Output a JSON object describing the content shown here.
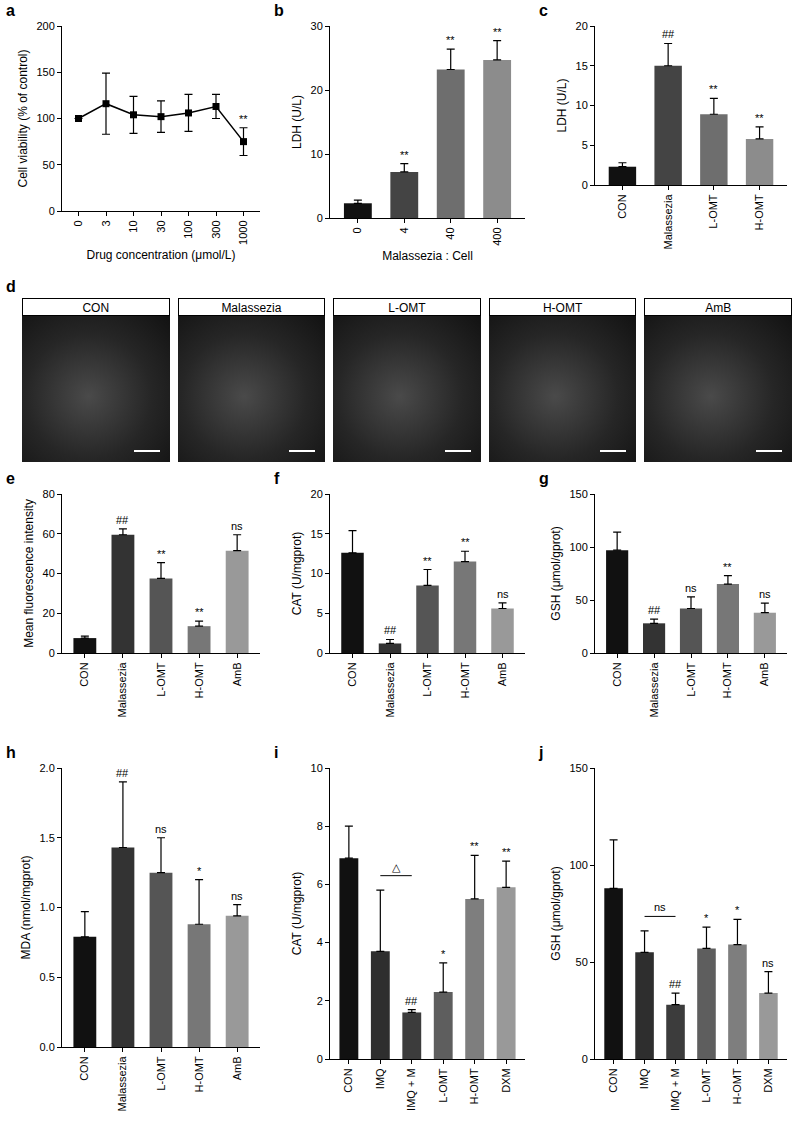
{
  "chart_data": [
    {
      "type": "line",
      "title": "a",
      "categories": [
        "0",
        "3",
        "10",
        "30",
        "100",
        "300",
        "1000"
      ],
      "values": [
        100,
        116,
        104,
        102,
        106,
        113,
        75
      ],
      "errors": [
        0,
        33,
        20,
        17,
        20,
        13,
        15
      ],
      "significance": [
        null,
        null,
        null,
        null,
        null,
        null,
        "**"
      ],
      "color": "#000000",
      "marker": "square",
      "x_label": "Drug concentration (μmol/L)",
      "y_label": "Cell viability (% of control)",
      "ylim": [
        0,
        200
      ],
      "yticks": [
        0,
        50,
        100,
        150,
        200
      ],
      "grid": false
    },
    {
      "type": "bar",
      "title": "b",
      "categories": [
        "0",
        "4",
        "40",
        "400"
      ],
      "values": [
        2.3,
        7.2,
        23.2,
        24.7
      ],
      "errors": [
        0.5,
        1.3,
        3.2,
        3.0
      ],
      "significance": [
        null,
        "**",
        "**",
        "**"
      ],
      "colors": [
        "#111111",
        "#444444",
        "#6e6e6e",
        "#8c8c8c"
      ],
      "x_label": "Malassezia : Cell",
      "y_label": "LDH (U/L)",
      "ylim": [
        0,
        30
      ],
      "yticks": [
        0,
        10,
        20,
        30
      ],
      "grid": false
    },
    {
      "type": "bar",
      "title": "c",
      "categories": [
        "CON",
        "Malassezia",
        "L-OMT",
        "H-OMT"
      ],
      "values": [
        2.3,
        15.0,
        8.9,
        5.8
      ],
      "errors": [
        0.5,
        2.8,
        2.0,
        1.5
      ],
      "significance": [
        null,
        "##",
        "**",
        "**"
      ],
      "colors": [
        "#111111",
        "#444444",
        "#6e6e6e",
        "#8c8c8c"
      ],
      "y_label": "LDH (U/L)",
      "ylim": [
        0,
        20
      ],
      "yticks": [
        0,
        5,
        10,
        15,
        20
      ],
      "grid": false
    },
    {
      "type": "image",
      "title": "d",
      "panels": [
        "CON",
        "Malassezia",
        "L-OMT",
        "H-OMT",
        "AmB"
      ]
    },
    {
      "type": "bar",
      "title": "e",
      "categories": [
        "CON",
        "Malassezia",
        "L-OMT",
        "H-OMT",
        "AmB"
      ],
      "values": [
        7.5,
        59.5,
        37.5,
        13.5,
        51.5
      ],
      "errors": [
        1.0,
        3.0,
        8.0,
        2.5,
        8.0
      ],
      "significance": [
        null,
        "##",
        "**",
        "**",
        "ns"
      ],
      "colors": [
        "#111111",
        "#333333",
        "#555555",
        "#777777",
        "#999999"
      ],
      "y_label": "Mean fluorescence intensity",
      "ylim": [
        0,
        80
      ],
      "yticks": [
        0,
        20,
        40,
        60,
        80
      ],
      "grid": false
    },
    {
      "type": "bar",
      "title": "f",
      "categories": [
        "CON",
        "Malassezia",
        "L-OMT",
        "H-OMT",
        "AmB"
      ],
      "values": [
        12.6,
        1.2,
        8.5,
        11.5,
        5.6
      ],
      "errors": [
        2.8,
        0.5,
        2.0,
        1.3,
        0.7
      ],
      "significance": [
        null,
        "##",
        "**",
        "**",
        "ns"
      ],
      "colors": [
        "#111111",
        "#333333",
        "#555555",
        "#777777",
        "#999999"
      ],
      "y_label": "CAT (U/mgprot)",
      "ylim": [
        0,
        20
      ],
      "yticks": [
        0,
        5,
        10,
        15,
        20
      ],
      "grid": false
    },
    {
      "type": "bar",
      "title": "g",
      "categories": [
        "CON",
        "Malassezia",
        "L-OMT",
        "H-OMT",
        "AmB"
      ],
      "values": [
        97,
        28,
        42,
        65,
        38
      ],
      "errors": [
        17,
        4,
        11,
        8,
        9
      ],
      "significance": [
        null,
        "##",
        "ns",
        "**",
        "ns"
      ],
      "colors": [
        "#111111",
        "#333333",
        "#555555",
        "#777777",
        "#999999"
      ],
      "y_label": "GSH (μmol/gprot)",
      "ylim": [
        0,
        150
      ],
      "yticks": [
        0,
        50,
        100,
        150
      ],
      "grid": false
    },
    {
      "type": "bar",
      "title": "h",
      "categories": [
        "CON",
        "Malassezia",
        "L-OMT",
        "H-OMT",
        "AmB"
      ],
      "values": [
        0.79,
        1.43,
        1.25,
        0.88,
        0.94
      ],
      "errors": [
        0.18,
        0.47,
        0.25,
        0.32,
        0.08
      ],
      "significance": [
        null,
        "##",
        "ns",
        "*",
        "ns"
      ],
      "colors": [
        "#111111",
        "#333333",
        "#555555",
        "#777777",
        "#999999"
      ],
      "y_label": "MDA (nmol/mgprot)",
      "ylim": [
        0,
        2.0
      ],
      "yticks": [
        {
          "value": 0,
          "label": "0.0"
        },
        0.5,
        {
          "value": 1,
          "label": "1.0"
        },
        1.5,
        {
          "value": 2,
          "label": "2.0"
        }
      ],
      "grid": false
    },
    {
      "type": "bar",
      "title": "i",
      "categories": [
        "CON",
        "IMQ",
        "IMQ + M",
        "L-OMT",
        "H-OMT",
        "DXM"
      ],
      "values": [
        6.9,
        3.7,
        1.6,
        2.3,
        5.5,
        5.9
      ],
      "errors": [
        1.1,
        2.1,
        0.1,
        1.0,
        1.5,
        0.9
      ],
      "significance": [
        null,
        null,
        "##",
        "*",
        "**",
        "**"
      ],
      "colors": [
        "#111111",
        "#2e2e2e",
        "#3c3c3c",
        "#5e5e5e",
        "#7e7e7e",
        "#999999"
      ],
      "brackets": [
        {
          "from": "IMQ",
          "to": "IMQ + M",
          "text": "△"
        }
      ],
      "y_label": "CAT (U/mgprot)",
      "ylim": [
        0,
        10
      ],
      "yticks": [
        0,
        2,
        4,
        6,
        8,
        10
      ],
      "grid": false
    },
    {
      "type": "bar",
      "title": "j",
      "categories": [
        "CON",
        "IMQ",
        "IMQ + M",
        "L-OMT",
        "H-OMT",
        "DXM"
      ],
      "values": [
        88,
        55,
        28,
        57,
        59,
        34
      ],
      "errors": [
        25,
        11,
        6,
        11,
        13,
        11
      ],
      "significance": [
        null,
        null,
        "##",
        "*",
        "*",
        "ns"
      ],
      "colors": [
        "#111111",
        "#2e2e2e",
        "#3c3c3c",
        "#5e5e5e",
        "#7e7e7e",
        "#999999"
      ],
      "brackets": [
        {
          "from": "IMQ",
          "to": "IMQ + M",
          "text": "ns"
        }
      ],
      "y_label": "GSH (μmol/gprot)",
      "ylim": [
        0,
        150
      ],
      "yticks": [
        0,
        50,
        100,
        150
      ],
      "grid": false
    }
  ]
}
